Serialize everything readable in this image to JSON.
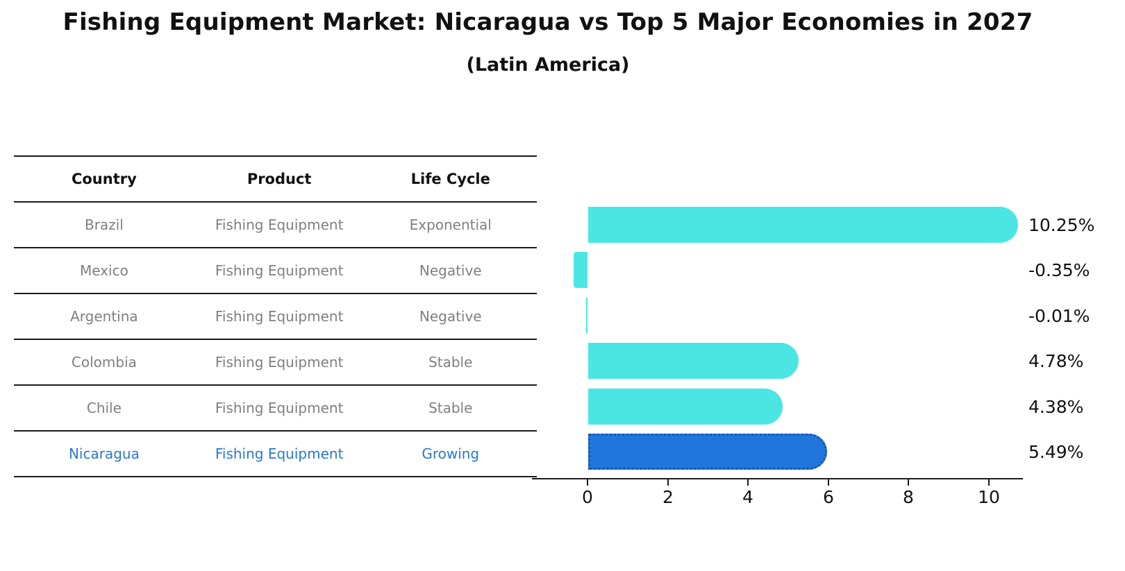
{
  "title": "Fishing Equipment Market: Nicaragua vs Top 5 Major Economies in 2027",
  "subtitle": "(Latin America)",
  "table": {
    "headers": [
      "Country",
      "Product",
      "Life Cycle"
    ],
    "rows": [
      {
        "country": "Brazil",
        "product": "Fishing Equipment",
        "life_cycle": "Exponential"
      },
      {
        "country": "Mexico",
        "product": "Fishing Equipment",
        "life_cycle": "Negative"
      },
      {
        "country": "Argentina",
        "product": "Fishing Equipment",
        "life_cycle": "Negative"
      },
      {
        "country": "Colombia",
        "product": "Fishing Equipment",
        "life_cycle": "Stable"
      },
      {
        "country": "Chile",
        "product": "Fishing Equipment",
        "life_cycle": "Stable"
      },
      {
        "country": "Nicaragua",
        "product": "Fishing Equipment",
        "life_cycle": "Growing"
      }
    ],
    "highlight_row": "Nicaragua"
  },
  "chart_data": {
    "type": "bar",
    "orientation": "horizontal",
    "categories": [
      "Brazil",
      "Mexico",
      "Argentina",
      "Colombia",
      "Chile",
      "Nicaragua"
    ],
    "values": [
      10.25,
      -0.35,
      -0.01,
      4.78,
      4.38,
      5.49
    ],
    "value_labels": [
      "10.25%",
      "-0.35%",
      "-0.01%",
      "4.78%",
      "4.38%",
      "5.49%"
    ],
    "xticks": [
      "0",
      "2",
      "4",
      "6",
      "8",
      "10"
    ],
    "xlim": [
      -1.4,
      10.9
    ],
    "grid": false,
    "legend": false,
    "highlight_index": 5,
    "bar_color": "#4BE6E4",
    "highlight_bar_color": "#2176DB",
    "highlight_border_color": "#1558AD",
    "highlight_text_color": "#2878D0",
    "row_text_color": "#7f7f7f",
    "axis_color": "#1a1a1a"
  }
}
